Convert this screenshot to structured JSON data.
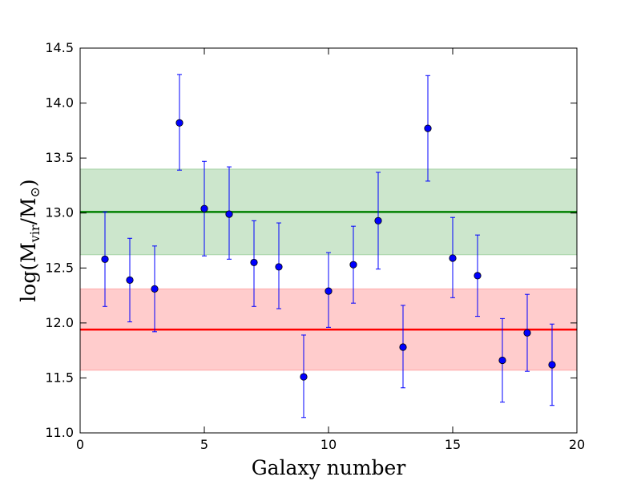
{
  "chart_data": {
    "type": "scatter",
    "title": "",
    "xlabel": "Galaxy number",
    "ylabel": {
      "prefix": "log(M",
      "sub1": "vir",
      "middle": "/M",
      "sub2": "⊙",
      "suffix": ")"
    },
    "xlim": [
      0,
      20
    ],
    "ylim": [
      11.0,
      14.5
    ],
    "xticks": [
      0,
      5,
      10,
      15,
      20
    ],
    "yticks": [
      11.0,
      11.5,
      12.0,
      12.5,
      13.0,
      13.5,
      14.0,
      14.5
    ],
    "grid": false,
    "series": [
      {
        "name": "galaxies",
        "color": "#0000ff",
        "points": [
          {
            "x": 1,
            "y": 12.58,
            "lo": 12.15,
            "hi": 13.01
          },
          {
            "x": 2,
            "y": 12.39,
            "lo": 12.01,
            "hi": 12.77
          },
          {
            "x": 3,
            "y": 12.31,
            "lo": 11.92,
            "hi": 12.7
          },
          {
            "x": 4,
            "y": 13.82,
            "lo": 13.39,
            "hi": 14.26
          },
          {
            "x": 5,
            "y": 13.04,
            "lo": 12.61,
            "hi": 13.47
          },
          {
            "x": 6,
            "y": 12.99,
            "lo": 12.58,
            "hi": 13.42
          },
          {
            "x": 7,
            "y": 12.55,
            "lo": 12.15,
            "hi": 12.93
          },
          {
            "x": 8,
            "y": 12.51,
            "lo": 12.13,
            "hi": 12.91
          },
          {
            "x": 9,
            "y": 11.51,
            "lo": 11.14,
            "hi": 11.89
          },
          {
            "x": 10,
            "y": 12.29,
            "lo": 11.96,
            "hi": 12.64
          },
          {
            "x": 11,
            "y": 12.53,
            "lo": 12.18,
            "hi": 12.88
          },
          {
            "x": 12,
            "y": 12.93,
            "lo": 12.49,
            "hi": 13.37
          },
          {
            "x": 13,
            "y": 11.78,
            "lo": 11.41,
            "hi": 12.16
          },
          {
            "x": 14,
            "y": 13.77,
            "lo": 13.29,
            "hi": 14.25
          },
          {
            "x": 15,
            "y": 12.59,
            "lo": 12.23,
            "hi": 12.96
          },
          {
            "x": 16,
            "y": 12.43,
            "lo": 12.06,
            "hi": 12.8
          },
          {
            "x": 17,
            "y": 11.66,
            "lo": 11.28,
            "hi": 12.04
          },
          {
            "x": 18,
            "y": 11.91,
            "lo": 11.56,
            "hi": 12.26
          },
          {
            "x": 19,
            "y": 11.62,
            "lo": 11.25,
            "hi": 11.99
          }
        ]
      }
    ],
    "horizontal_lines": [
      {
        "name": "green-mean",
        "y": 13.01,
        "color": "#008000"
      },
      {
        "name": "red-mean",
        "y": 11.94,
        "color": "#ff0000"
      }
    ],
    "bands": [
      {
        "name": "green-band",
        "ymin": 12.62,
        "ymax": 13.4,
        "color": "#008000",
        "opacity": 0.2
      },
      {
        "name": "red-band",
        "ymin": 11.57,
        "ymax": 12.31,
        "color": "#ff0000",
        "opacity": 0.2
      }
    ]
  }
}
